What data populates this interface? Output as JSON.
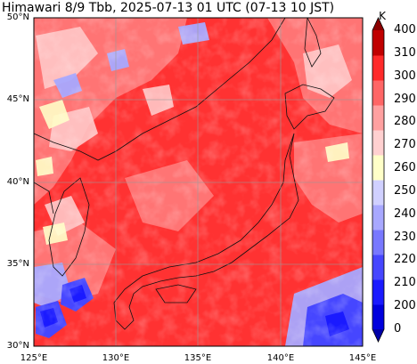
{
  "title": "Himawari 8/9 Tbb, 2025-07-13 01 UTC (07-13 10 JST)",
  "map": {
    "lat_range": [
      30,
      50
    ],
    "lon_range": [
      125,
      145
    ],
    "lat_ticks": [
      "30°N",
      "35°N",
      "40°N",
      "45°N",
      "50°N"
    ],
    "lon_ticks": [
      "125°E",
      "130°E",
      "135°E",
      "140°E",
      "145°E"
    ],
    "grid": true
  },
  "colorbar": {
    "unit": "K",
    "ticks": [
      "0",
      "200",
      "210",
      "220",
      "230",
      "240",
      "250",
      "260",
      "270",
      "280",
      "290",
      "300",
      "310",
      "400"
    ],
    "colors": [
      "#0000a8",
      "#0000dd",
      "#1a1aff",
      "#4646ff",
      "#7878ff",
      "#a8a8ff",
      "#d0d0ff",
      "#ffffc8",
      "#ffd0d0",
      "#ffa0a0",
      "#ff6666",
      "#ff2a2a",
      "#c00000",
      "#8b0000"
    ],
    "extend": "both"
  }
}
